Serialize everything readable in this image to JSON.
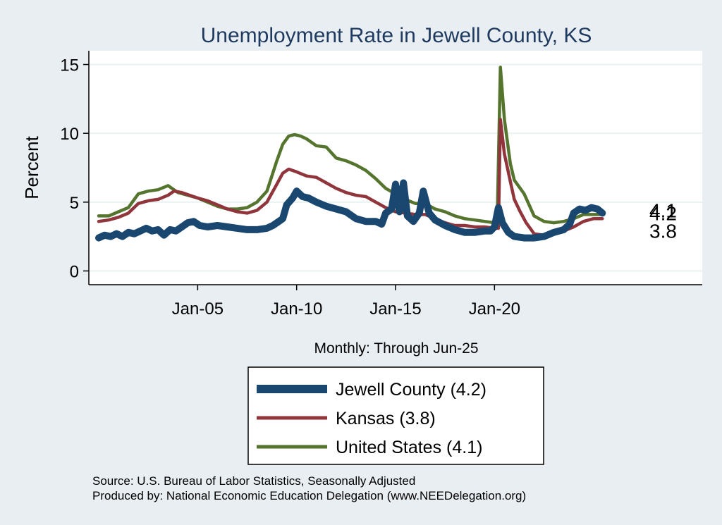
{
  "chart_data": {
    "type": "line",
    "title": "Unemployment Rate in Jewell  County, KS",
    "xlabel": "Monthly: Through Jun-25",
    "ylabel": "Percent",
    "ylim": [
      -1,
      16
    ],
    "xlim": [
      1999.5,
      2030.5
    ],
    "yticks": [
      0,
      5,
      10,
      15
    ],
    "xticks": [
      {
        "label": "Jan-05",
        "value": 2005
      },
      {
        "label": "Jan-10",
        "value": 2010
      },
      {
        "label": "Jan-15",
        "value": 2015
      },
      {
        "label": "Jan-20",
        "value": 2020
      }
    ],
    "series": [
      {
        "name": "Jewell  County",
        "legend": "Jewell  County (4.2)",
        "end_label": "4.2",
        "color": "#1a476f",
        "points": [
          [
            2000.0,
            2.4
          ],
          [
            2000.3,
            2.6
          ],
          [
            2000.6,
            2.5
          ],
          [
            2000.9,
            2.7
          ],
          [
            2001.2,
            2.5
          ],
          [
            2001.5,
            2.8
          ],
          [
            2001.8,
            2.7
          ],
          [
            2002.1,
            2.9
          ],
          [
            2002.4,
            3.1
          ],
          [
            2002.7,
            2.9
          ],
          [
            2003.0,
            3.0
          ],
          [
            2003.3,
            2.6
          ],
          [
            2003.6,
            3.0
          ],
          [
            2003.9,
            2.9
          ],
          [
            2004.2,
            3.2
          ],
          [
            2004.5,
            3.5
          ],
          [
            2004.8,
            3.6
          ],
          [
            2005.1,
            3.3
          ],
          [
            2005.5,
            3.2
          ],
          [
            2006.0,
            3.3
          ],
          [
            2006.5,
            3.2
          ],
          [
            2007.0,
            3.1
          ],
          [
            2007.5,
            3.0
          ],
          [
            2008.0,
            3.0
          ],
          [
            2008.5,
            3.1
          ],
          [
            2008.8,
            3.3
          ],
          [
            2009.1,
            3.6
          ],
          [
            2009.3,
            3.8
          ],
          [
            2009.5,
            4.8
          ],
          [
            2009.8,
            5.3
          ],
          [
            2010.0,
            5.8
          ],
          [
            2010.3,
            5.4
          ],
          [
            2010.6,
            5.3
          ],
          [
            2011.0,
            5.0
          ],
          [
            2011.5,
            4.7
          ],
          [
            2012.0,
            4.5
          ],
          [
            2012.5,
            4.3
          ],
          [
            2013.0,
            3.8
          ],
          [
            2013.5,
            3.6
          ],
          [
            2014.0,
            3.6
          ],
          [
            2014.3,
            3.4
          ],
          [
            2014.5,
            4.2
          ],
          [
            2014.8,
            4.5
          ],
          [
            2015.0,
            6.3
          ],
          [
            2015.2,
            4.3
          ],
          [
            2015.4,
            6.4
          ],
          [
            2015.6,
            4.0
          ],
          [
            2015.9,
            3.6
          ],
          [
            2016.2,
            4.2
          ],
          [
            2016.4,
            5.8
          ],
          [
            2016.7,
            4.2
          ],
          [
            2017.0,
            3.7
          ],
          [
            2017.5,
            3.3
          ],
          [
            2018.0,
            3.0
          ],
          [
            2018.5,
            2.8
          ],
          [
            2019.0,
            2.8
          ],
          [
            2019.5,
            2.9
          ],
          [
            2019.8,
            2.9
          ],
          [
            2020.0,
            3.2
          ],
          [
            2020.2,
            4.6
          ],
          [
            2020.4,
            3.5
          ],
          [
            2020.7,
            2.8
          ],
          [
            2021.0,
            2.5
          ],
          [
            2021.5,
            2.4
          ],
          [
            2022.0,
            2.4
          ],
          [
            2022.5,
            2.5
          ],
          [
            2023.0,
            2.8
          ],
          [
            2023.5,
            3.0
          ],
          [
            2023.8,
            3.4
          ],
          [
            2024.0,
            4.2
          ],
          [
            2024.3,
            4.5
          ],
          [
            2024.6,
            4.4
          ],
          [
            2024.9,
            4.6
          ],
          [
            2025.2,
            4.5
          ],
          [
            2025.45,
            4.2
          ]
        ]
      },
      {
        "name": "Kansas",
        "legend": "Kansas (3.8)",
        "end_label": "3.8",
        "color": "#90353b",
        "points": [
          [
            2000.0,
            3.6
          ],
          [
            2000.5,
            3.7
          ],
          [
            2001.0,
            3.9
          ],
          [
            2001.5,
            4.2
          ],
          [
            2002.0,
            4.9
          ],
          [
            2002.5,
            5.1
          ],
          [
            2003.0,
            5.2
          ],
          [
            2003.5,
            5.5
          ],
          [
            2003.8,
            5.8
          ],
          [
            2004.2,
            5.7
          ],
          [
            2004.6,
            5.5
          ],
          [
            2005.0,
            5.3
          ],
          [
            2005.5,
            5.1
          ],
          [
            2006.0,
            4.8
          ],
          [
            2006.5,
            4.5
          ],
          [
            2007.0,
            4.3
          ],
          [
            2007.5,
            4.2
          ],
          [
            2008.0,
            4.4
          ],
          [
            2008.5,
            5.0
          ],
          [
            2009.0,
            6.3
          ],
          [
            2009.3,
            7.1
          ],
          [
            2009.6,
            7.4
          ],
          [
            2010.0,
            7.2
          ],
          [
            2010.5,
            6.9
          ],
          [
            2011.0,
            6.8
          ],
          [
            2011.5,
            6.4
          ],
          [
            2012.0,
            6.0
          ],
          [
            2012.5,
            5.7
          ],
          [
            2013.0,
            5.5
          ],
          [
            2013.5,
            5.4
          ],
          [
            2014.0,
            5.0
          ],
          [
            2014.5,
            4.6
          ],
          [
            2015.0,
            4.3
          ],
          [
            2015.5,
            4.2
          ],
          [
            2016.0,
            4.1
          ],
          [
            2016.5,
            4.1
          ],
          [
            2017.0,
            3.8
          ],
          [
            2017.5,
            3.5
          ],
          [
            2018.0,
            3.3
          ],
          [
            2018.5,
            3.3
          ],
          [
            2019.0,
            3.2
          ],
          [
            2019.5,
            3.2
          ],
          [
            2020.0,
            3.1
          ],
          [
            2020.2,
            3.1
          ],
          [
            2020.3,
            11.0
          ],
          [
            2020.5,
            8.5
          ],
          [
            2020.8,
            6.5
          ],
          [
            2021.0,
            5.2
          ],
          [
            2021.3,
            4.3
          ],
          [
            2021.6,
            3.5
          ],
          [
            2022.0,
            2.7
          ],
          [
            2022.5,
            2.6
          ],
          [
            2023.0,
            2.8
          ],
          [
            2023.5,
            2.9
          ],
          [
            2024.0,
            3.2
          ],
          [
            2024.5,
            3.6
          ],
          [
            2025.0,
            3.8
          ],
          [
            2025.45,
            3.8
          ]
        ]
      },
      {
        "name": "United States",
        "legend": "United States (4.1)",
        "end_label": "4.1",
        "color": "#55752f",
        "points": [
          [
            2000.0,
            4.0
          ],
          [
            2000.5,
            4.0
          ],
          [
            2001.0,
            4.3
          ],
          [
            2001.5,
            4.6
          ],
          [
            2002.0,
            5.6
          ],
          [
            2002.5,
            5.8
          ],
          [
            2003.0,
            5.9
          ],
          [
            2003.5,
            6.2
          ],
          [
            2004.0,
            5.7
          ],
          [
            2004.5,
            5.5
          ],
          [
            2005.0,
            5.3
          ],
          [
            2005.5,
            5.0
          ],
          [
            2006.0,
            4.7
          ],
          [
            2006.5,
            4.5
          ],
          [
            2007.0,
            4.5
          ],
          [
            2007.5,
            4.6
          ],
          [
            2008.0,
            5.0
          ],
          [
            2008.5,
            5.8
          ],
          [
            2009.0,
            8.0
          ],
          [
            2009.3,
            9.2
          ],
          [
            2009.6,
            9.8
          ],
          [
            2009.9,
            9.9
          ],
          [
            2010.2,
            9.8
          ],
          [
            2010.5,
            9.6
          ],
          [
            2011.0,
            9.1
          ],
          [
            2011.5,
            9.0
          ],
          [
            2012.0,
            8.2
          ],
          [
            2012.5,
            8.0
          ],
          [
            2013.0,
            7.7
          ],
          [
            2013.5,
            7.3
          ],
          [
            2014.0,
            6.7
          ],
          [
            2014.5,
            6.0
          ],
          [
            2015.0,
            5.6
          ],
          [
            2015.5,
            5.2
          ],
          [
            2016.0,
            4.9
          ],
          [
            2016.5,
            4.9
          ],
          [
            2017.0,
            4.5
          ],
          [
            2017.5,
            4.3
          ],
          [
            2018.0,
            4.0
          ],
          [
            2018.5,
            3.8
          ],
          [
            2019.0,
            3.7
          ],
          [
            2019.5,
            3.6
          ],
          [
            2020.0,
            3.5
          ],
          [
            2020.15,
            4.4
          ],
          [
            2020.3,
            14.8
          ],
          [
            2020.5,
            11.0
          ],
          [
            2020.8,
            7.8
          ],
          [
            2021.0,
            6.6
          ],
          [
            2021.5,
            5.6
          ],
          [
            2022.0,
            4.0
          ],
          [
            2022.5,
            3.6
          ],
          [
            2023.0,
            3.5
          ],
          [
            2023.5,
            3.6
          ],
          [
            2024.0,
            3.8
          ],
          [
            2024.5,
            4.1
          ],
          [
            2025.0,
            4.1
          ],
          [
            2025.45,
            4.1
          ]
        ]
      }
    ],
    "source_line1": "Source: U.S. Bureau of Labor Statistics, Seasonally Adjusted",
    "source_line2": "Produced by: National Economic Education Delegation (www.NEEDelegation.org)"
  }
}
